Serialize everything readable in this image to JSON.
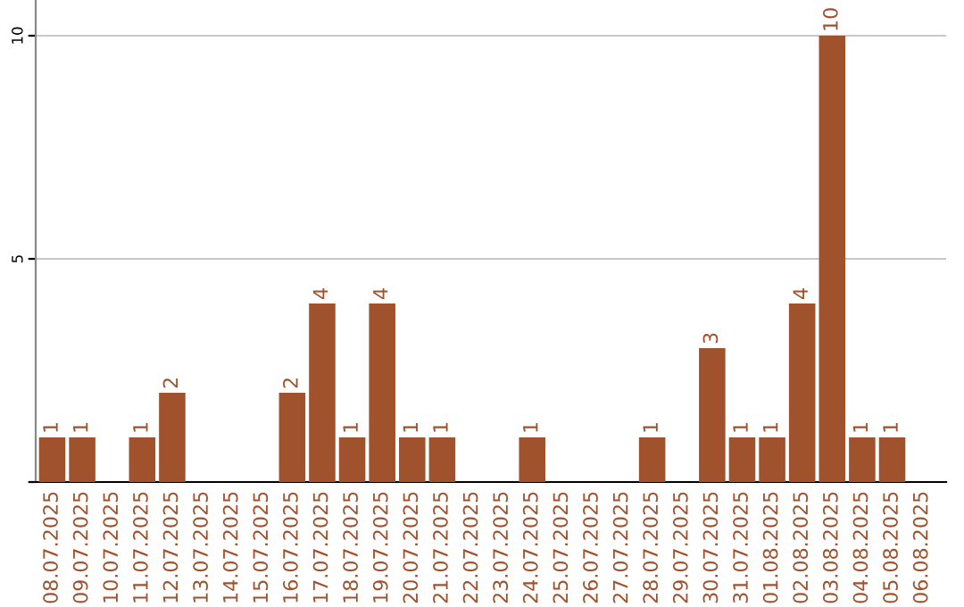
{
  "chart_data": {
    "type": "bar",
    "categories": [
      "08.07.2025",
      "09.07.2025",
      "10.07.2025",
      "11.07.2025",
      "12.07.2025",
      "13.07.2025",
      "14.07.2025",
      "15.07.2025",
      "16.07.2025",
      "17.07.2025",
      "18.07.2025",
      "19.07.2025",
      "20.07.2025",
      "21.07.2025",
      "22.07.2025",
      "23.07.2025",
      "24.07.2025",
      "25.07.2025",
      "26.07.2025",
      "27.07.2025",
      "28.07.2025",
      "29.07.2025",
      "30.07.2025",
      "31.07.2025",
      "01.08.2025",
      "02.08.2025",
      "03.08.2025",
      "04.08.2025",
      "05.08.2025",
      "06.08.2025"
    ],
    "values": [
      1,
      1,
      0,
      1,
      2,
      0,
      0,
      0,
      2,
      4,
      1,
      4,
      1,
      1,
      0,
      0,
      1,
      0,
      0,
      0,
      1,
      0,
      3,
      1,
      1,
      4,
      10,
      1,
      1,
      0
    ],
    "value_labels": [
      "1",
      "1",
      null,
      "1",
      "2",
      null,
      null,
      null,
      "2",
      "4",
      "1",
      "4",
      "1",
      "1",
      null,
      null,
      "1",
      null,
      null,
      null,
      "1",
      null,
      "3",
      "1",
      "1",
      "4",
      "10",
      "1",
      "1",
      null
    ],
    "color": "#a0522d",
    "ylim": [
      0,
      10.8
    ],
    "yticks": [
      {
        "value": 0,
        "label": null
      },
      5,
      10
    ],
    "grid": "y"
  }
}
